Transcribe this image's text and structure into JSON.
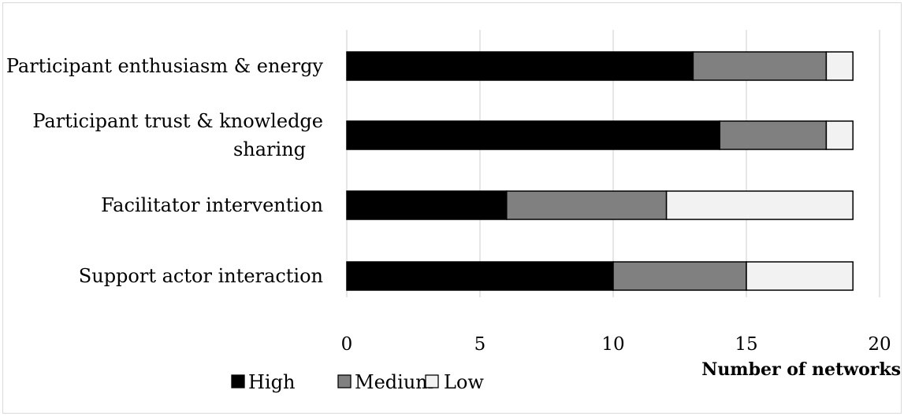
{
  "chart_data": {
    "type": "bar",
    "orientation": "horizontal",
    "stacked": true,
    "categories": [
      "Participant enthusiasm & energy",
      "Participant trust & knowledge sharing",
      "Facilitator intervention",
      "Support actor interaction"
    ],
    "series": [
      {
        "name": "High",
        "values": [
          13,
          14,
          6,
          10
        ],
        "color": "#000000"
      },
      {
        "name": "Medium",
        "values": [
          5,
          4,
          6,
          5
        ],
        "color": "#808080"
      },
      {
        "name": "Low",
        "values": [
          1,
          1,
          7,
          4
        ],
        "color": "#f2f2f2"
      }
    ],
    "xlabel": "Number of networks",
    "ylabel": "",
    "xlim": [
      0,
      20
    ],
    "xticks": [
      0,
      5,
      10,
      15,
      20
    ],
    "grid": "vertical",
    "legend_position": "bottom-left"
  }
}
